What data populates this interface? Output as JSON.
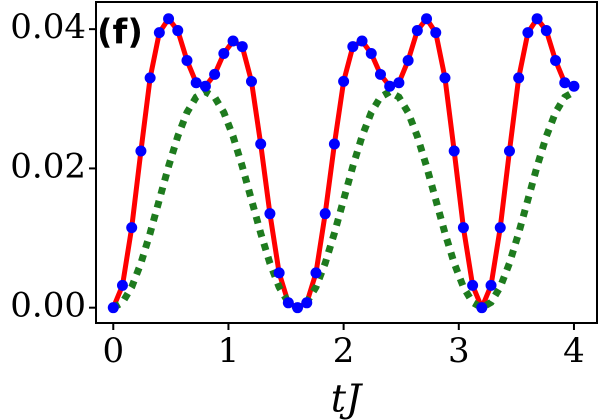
{
  "chart_data": {
    "type": "line",
    "annotation": "(f)",
    "xlabel": "tJ",
    "x": [
      0,
      0.08,
      0.16,
      0.24,
      0.32,
      0.4,
      0.48,
      0.56,
      0.64,
      0.72,
      0.8,
      0.88,
      0.96,
      1.04,
      1.12,
      1.2,
      1.28,
      1.36,
      1.44,
      1.52,
      1.6,
      1.68,
      1.76,
      1.84,
      1.92,
      2,
      2.08,
      2.16,
      2.24,
      2.32,
      2.4,
      2.48,
      2.56,
      2.64,
      2.72,
      2.8,
      2.88,
      2.96,
      3.04,
      3.12,
      3.2,
      3.28,
      3.36,
      3.44,
      3.52,
      3.6,
      3.68,
      3.76,
      3.84,
      3.92,
      4
    ],
    "series": [
      {
        "color": "#ff0000",
        "style": "solid",
        "values": [
          0,
          0.0032,
          0.0115,
          0.0225,
          0.033,
          0.0395,
          0.0415,
          0.0398,
          0.0355,
          0.0323,
          0.0318,
          0.0335,
          0.0365,
          0.0383,
          0.0375,
          0.0325,
          0.0235,
          0.0135,
          0.005,
          0.0007,
          0,
          0.0007,
          0.005,
          0.0135,
          0.0235,
          0.0325,
          0.0375,
          0.0383,
          0.0365,
          0.0335,
          0.0318,
          0.0323,
          0.0355,
          0.0398,
          0.0415,
          0.0395,
          0.033,
          0.0225,
          0.0115,
          0.0032,
          0,
          0.0032,
          0.0115,
          0.0225,
          0.033,
          0.0395,
          0.0415,
          0.0398,
          0.0355,
          0.0323,
          0.0318
        ]
      },
      {
        "color": "#0000ff",
        "style": "markers",
        "values": [
          0,
          0.0032,
          0.0115,
          0.0225,
          0.033,
          0.0395,
          0.0415,
          0.0398,
          0.0355,
          0.0323,
          0.0318,
          0.0335,
          0.0365,
          0.0383,
          0.0375,
          0.0325,
          0.0235,
          0.0135,
          0.005,
          0.0007,
          0,
          0.0007,
          0.005,
          0.0135,
          0.0235,
          0.0325,
          0.0375,
          0.0383,
          0.0365,
          0.0335,
          0.0318,
          0.0323,
          0.0355,
          0.0398,
          0.0415,
          0.0395,
          0.033,
          0.0225,
          0.0115,
          0.0032,
          0,
          0.0032,
          0.0115,
          0.0225,
          0.033,
          0.0395,
          0.0415,
          0.0398,
          0.0355,
          0.0323,
          0.0318
        ]
      },
      {
        "color": "#1e7b1e",
        "style": "dotted",
        "values": [
          0,
          0.00076,
          0.00296,
          0.00639,
          0.01071,
          0.0155,
          0.02029,
          0.02461,
          0.02804,
          0.03024,
          0.031,
          0.03024,
          0.02804,
          0.02461,
          0.02029,
          0.0155,
          0.01071,
          0.00639,
          0.00296,
          0.00076,
          0,
          0.00076,
          0.00296,
          0.00639,
          0.01071,
          0.0155,
          0.02029,
          0.02461,
          0.02804,
          0.03024,
          0.031,
          0.03024,
          0.02804,
          0.02461,
          0.02029,
          0.0155,
          0.01071,
          0.00639,
          0.00296,
          0.00076,
          0,
          0.00076,
          0.00296,
          0.00639,
          0.01071,
          0.0155,
          0.02029,
          0.02461,
          0.02804,
          0.03024,
          0.031
        ]
      }
    ],
    "xlim": [
      -0.15,
      4.2
    ],
    "ylim": [
      -0.0022,
      0.0439
    ],
    "xticks": [
      0,
      1,
      2,
      3,
      4
    ],
    "yticks": [
      {
        "value": 0,
        "label": "0.00"
      },
      {
        "value": 0.02,
        "label": "0.02"
      },
      {
        "value": 0.04,
        "label": "0.04"
      }
    ]
  }
}
